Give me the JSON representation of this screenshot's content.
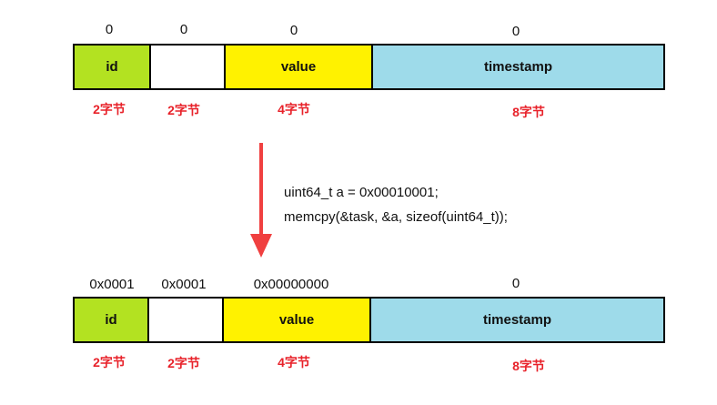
{
  "colors": {
    "id_fill": "#b3e221",
    "pad_fill": "#ffffff",
    "value_fill": "#fff200",
    "timestamp_fill": "#9edbea",
    "size_label": "#e8222a",
    "arrow": "#f04040"
  },
  "fields": {
    "id": "id",
    "pad": "",
    "value": "value",
    "timestamp": "timestamp"
  },
  "sizes": {
    "id": "2字节",
    "pad": "2字节",
    "value": "4字节",
    "timestamp": "8字节"
  },
  "before": {
    "id": "0",
    "pad": "0",
    "value": "0",
    "timestamp": "0"
  },
  "after": {
    "id": "0x0001",
    "pad": "0x0001",
    "value": "0x00000000",
    "timestamp": "0"
  },
  "code": {
    "line1": "uint64_t a = 0x00010001;",
    "line2": "memcpy(&task, &a, sizeof(uint64_t));"
  }
}
